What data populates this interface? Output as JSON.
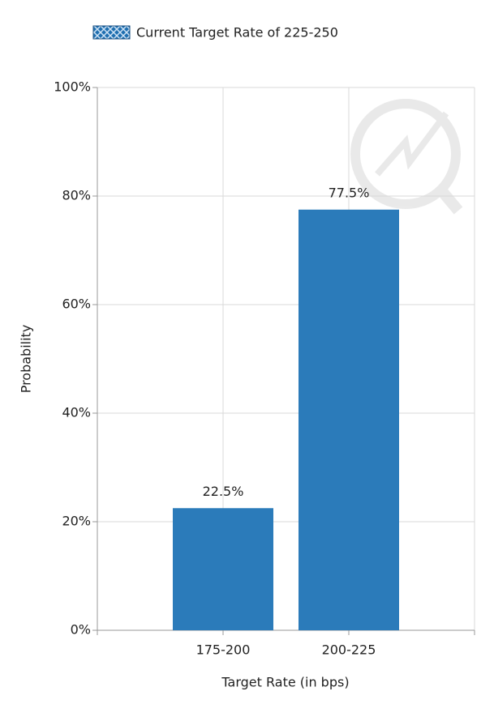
{
  "chart_data": {
    "type": "bar",
    "categories": [
      "175-200",
      "200-225"
    ],
    "series": [
      {
        "name": "Current Target Rate of 225-250",
        "color": "#1f6fb0",
        "pattern": "crosshatch",
        "values": [
          null,
          null
        ]
      },
      {
        "color": "#2b7bba",
        "values": [
          22.5,
          77.5
        ],
        "value_labels": [
          "22.5%",
          "77.5%"
        ]
      }
    ],
    "x_label": "Target Rate (in bps)",
    "y_label": "Probability",
    "ylim": [
      0,
      100
    ],
    "yticks": [
      {
        "value": 0,
        "label": "0%"
      },
      {
        "value": 20,
        "label": "20%"
      },
      {
        "value": 40,
        "label": "40%"
      },
      {
        "value": 60,
        "label": "60%"
      },
      {
        "value": 80,
        "label": "80%"
      },
      {
        "value": 100,
        "label": "100%"
      }
    ],
    "grid": true,
    "legend": "top"
  }
}
